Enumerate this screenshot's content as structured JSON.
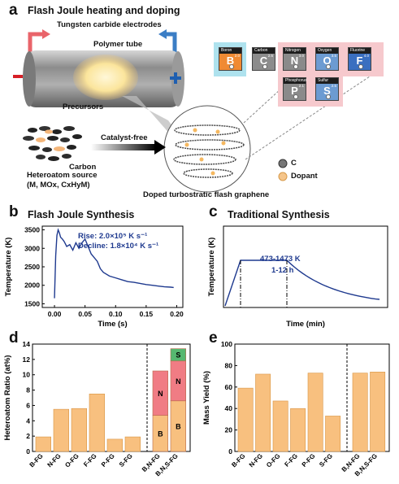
{
  "panel_a": {
    "letter": "a",
    "title": "Flash Joule heating and doping",
    "electrodes": "Tungsten carbide electrodes",
    "tube": "Polymer tube",
    "precursors": "Precursors",
    "minus": "−",
    "plus": "+",
    "carbon": "Carbon",
    "heteroatom_source": "Heteroatom source",
    "heteroatom_formula": "(M, MOx, CxHyM)",
    "catalyst_free": "Catalyst-free",
    "legend_c": "C",
    "legend_dopant": "Dopant",
    "product": "Doped turbostratic flash graphene",
    "elements": [
      {
        "name": "Boron",
        "symbol": "B",
        "num": "2.0"
      },
      {
        "name": "Carbon",
        "symbol": "C",
        "num": "2.5"
      },
      {
        "name": "Nitrogen",
        "symbol": "N",
        "num": "3.0"
      },
      {
        "name": "Oxygen",
        "symbol": "O",
        "num": "3.5"
      },
      {
        "name": "Fluorine",
        "symbol": "F",
        "num": "4.0"
      },
      {
        "name": "Phosphorus",
        "symbol": "P",
        "num": "2.1"
      },
      {
        "name": "Sulfur",
        "symbol": "S",
        "num": "2.5"
      }
    ]
  },
  "panel_b": {
    "letter": "b",
    "title": "Flash Joule Synthesis",
    "rise": "Rise: 2.0×10⁵ K s⁻¹",
    "decline": "Decline: 1.8×10⁴ K s⁻¹"
  },
  "panel_c": {
    "letter": "c",
    "title": "Traditional Synthesis",
    "temp_range": "473-1473 K",
    "time_range": "1-12 h"
  },
  "panel_d": {
    "letter": "d"
  },
  "panel_e": {
    "letter": "e"
  },
  "chart_data": [
    {
      "type": "line",
      "title": "Flash Joule Synthesis",
      "xlabel": "Time (s)",
      "ylabel": "Temperature (K)",
      "xlim": [
        -0.02,
        0.21
      ],
      "ylim": [
        1400,
        3600
      ],
      "xticks": [
        "0.00",
        "0.05",
        "0.10",
        "0.15",
        "0.20"
      ],
      "yticks": [
        "1500",
        "2000",
        "2500",
        "3000",
        "3500"
      ],
      "x": [
        0.0,
        0.002,
        0.004,
        0.006,
        0.008,
        0.01,
        0.013,
        0.016,
        0.02,
        0.025,
        0.03,
        0.035,
        0.04,
        0.045,
        0.05,
        0.055,
        0.06,
        0.065,
        0.07,
        0.075,
        0.08,
        0.09,
        0.1,
        0.11,
        0.12,
        0.13,
        0.14,
        0.15,
        0.16,
        0.17,
        0.18,
        0.19,
        0.195
      ],
      "y": [
        1650,
        2800,
        3350,
        3500,
        3420,
        3300,
        3250,
        3180,
        3050,
        3100,
        2950,
        3150,
        3000,
        3150,
        3250,
        3050,
        2850,
        2750,
        2650,
        2450,
        2350,
        2250,
        2200,
        2150,
        2100,
        2080,
        2050,
        2020,
        2000,
        1980,
        1960,
        1950,
        1940
      ]
    },
    {
      "type": "line",
      "title": "Traditional Synthesis",
      "xlabel": "Time (min)",
      "ylabel": "Temperature (K)",
      "x": [
        0,
        1,
        2,
        3,
        4,
        5,
        6,
        7,
        8,
        9,
        10
      ],
      "y": [
        0,
        0.7,
        0.7,
        0.7,
        0.7,
        0.55,
        0.4,
        0.28,
        0.2,
        0.14,
        0.1
      ]
    },
    {
      "type": "bar",
      "ylabel": "Heteroatom Ratio (at%)",
      "ylim": [
        0,
        14
      ],
      "yticks": [
        "0",
        "2",
        "4",
        "6",
        "8",
        "10",
        "12",
        "14"
      ],
      "categories": [
        "B-FG",
        "N-FG",
        "O-FG",
        "F-FG",
        "P-FG",
        "S-FG",
        "B,N-FG",
        "B,N,S-FG"
      ],
      "values": [
        1.9,
        5.5,
        5.6,
        7.5,
        1.6,
        1.9,
        null,
        null
      ],
      "stacked": [
        {
          "category": "B,N-FG",
          "segments": [
            {
              "label": "B",
              "value": 4.7
            },
            {
              "label": "N",
              "value": 5.8
            }
          ]
        },
        {
          "category": "B,N,S-FG",
          "segments": [
            {
              "label": "B",
              "value": 6.6
            },
            {
              "label": "N",
              "value": 5.2
            },
            {
              "label": "S",
              "value": 1.6
            }
          ]
        }
      ],
      "colors": {
        "bar": "#f8c07f",
        "N": "#f07c84",
        "S": "#56b870"
      }
    },
    {
      "type": "bar",
      "ylabel": "Mass Yield (%)",
      "ylim": [
        0,
        100
      ],
      "yticks": [
        "0",
        "20",
        "40",
        "60",
        "80",
        "100"
      ],
      "categories": [
        "B-FG",
        "N-FG",
        "O-FG",
        "F-FG",
        "P-FG",
        "S-FG",
        "B,N-FG",
        "B,N,S-FG"
      ],
      "values": [
        59,
        72,
        47,
        40,
        73,
        33,
        73,
        74
      ],
      "colors": {
        "bar": "#f8c07f"
      }
    }
  ]
}
